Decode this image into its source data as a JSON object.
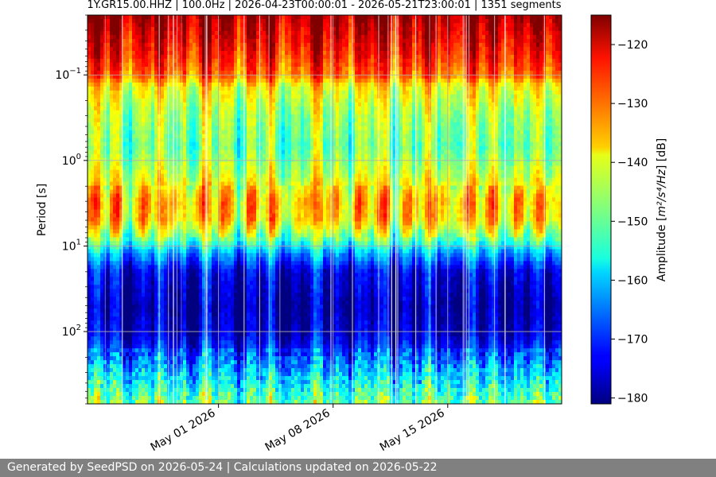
{
  "footer": {
    "text": "Generated by SeedPSD on 2026-05-24 | Calculations updated on 2026-05-22"
  },
  "chart_data": {
    "type": "heatmap",
    "title": "1Y.GR15.00.HHZ | 100.0Hz | 2026-04-23T00:00:01 - 2026-05-21T23:00:01 | 1351 segments",
    "xlabel": "",
    "ylabel": "Period [s]",
    "x_scale": "date",
    "xlim": [
      "2026-04-23T00:00:01",
      "2026-05-21T23:00:01"
    ],
    "x_ticks": [
      "2026-05-01",
      "2026-05-08",
      "2026-05-15"
    ],
    "x_tick_labels": [
      "May 01 2026",
      "May 08 2026",
      "May 15 2026"
    ],
    "y_scale": "log",
    "y_inverted": true,
    "ylim": [
      0.02,
      700
    ],
    "y_ticks": [
      0.1,
      1,
      10,
      100
    ],
    "y_tick_base": "10",
    "y_tick_exponents": [
      "−1",
      "0",
      "1",
      "2"
    ],
    "grid": true,
    "colorbar": {
      "label_prefix": "Amplitude [",
      "label_unit": "m²/s⁴/Hz",
      "label_suffix": "] [dB]",
      "colormap": "jet",
      "range": [
        -181,
        -115
      ],
      "ticks": [
        -120,
        -130,
        -140,
        -150,
        -160,
        -170,
        -180
      ],
      "tick_labels": [
        "−120",
        "−130",
        "−140",
        "−150",
        "−160",
        "−170",
        "−180"
      ]
    },
    "segments": 1351,
    "profile": [
      {
        "period": 0.02,
        "amplitude": -117
      },
      {
        "period": 0.034,
        "amplitude": -121
      },
      {
        "period": 0.06,
        "amplitude": -125
      },
      {
        "period": 0.1,
        "amplitude": -130
      },
      {
        "period": 0.14,
        "amplitude": -140
      },
      {
        "period": 0.3,
        "amplitude": -146
      },
      {
        "period": 0.7,
        "amplitude": -149
      },
      {
        "period": 1.5,
        "amplitude": -143
      },
      {
        "period": 3,
        "amplitude": -135
      },
      {
        "period": 5,
        "amplitude": -137
      },
      {
        "period": 8,
        "amplitude": -148
      },
      {
        "period": 12,
        "amplitude": -162
      },
      {
        "period": 20,
        "amplitude": -174
      },
      {
        "period": 50,
        "amplitude": -178
      },
      {
        "period": 100,
        "amplitude": -176
      },
      {
        "period": 200,
        "amplitude": -168
      },
      {
        "period": 400,
        "amplitude": -158
      },
      {
        "period": 700,
        "amplitude": -150
      }
    ]
  }
}
